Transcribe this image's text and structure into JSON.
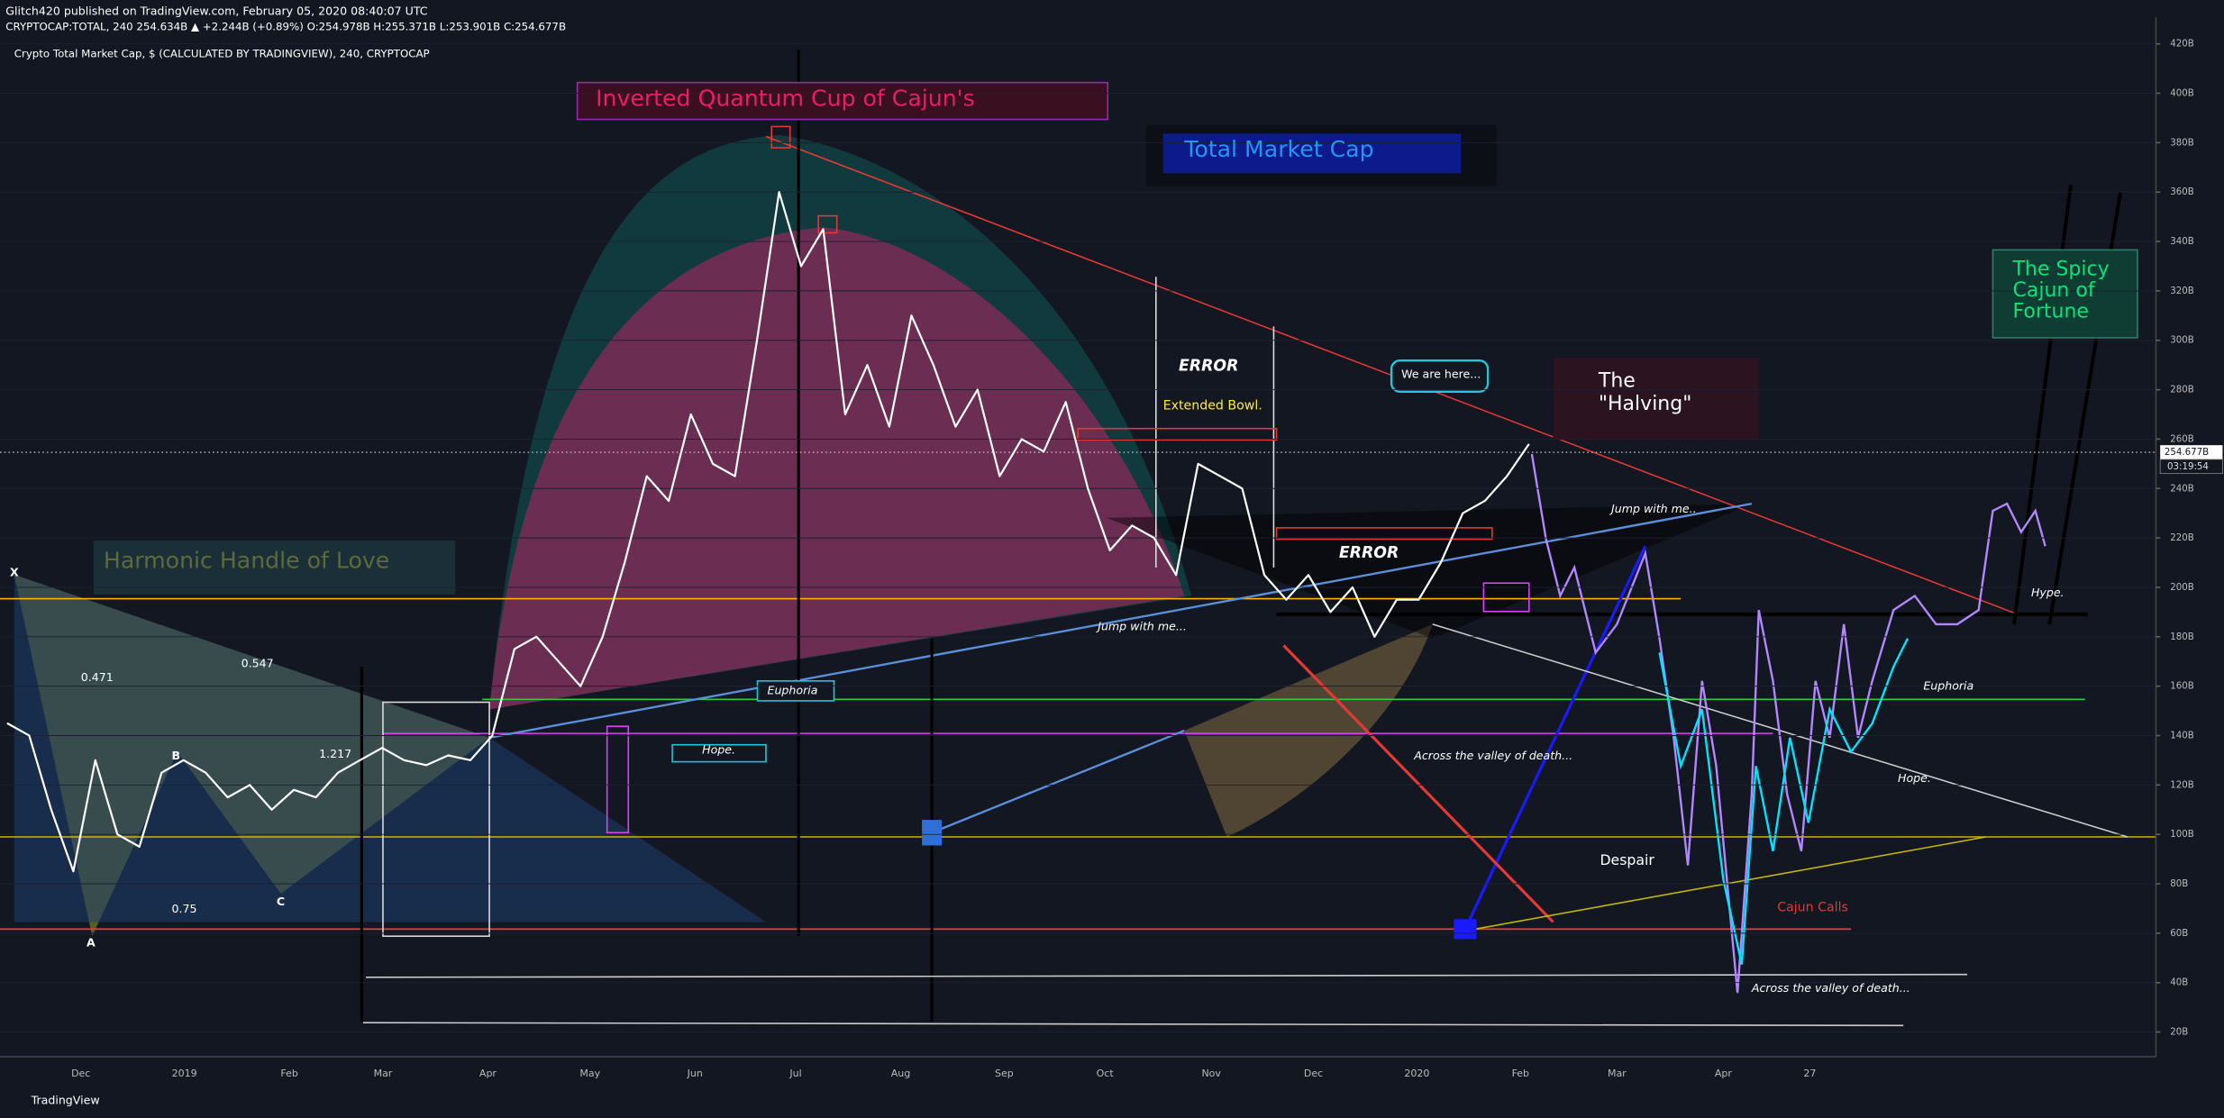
{
  "header": {
    "publisher": "Glitch420 published on TradingView.com, February 05, 2020 08:40:07 UTC",
    "symbol_line": "CRYPTOCAP:TOTAL, 240  254.634B ▲ +2.244B (+0.89%) O:254.978B H:255.371B L:253.901B C:254.677B",
    "footer": "TradingView",
    "countdown": "03:19:54"
  },
  "chart_data": {
    "type": "line",
    "title": "Crypto Total Market Cap, $ (CALCULATED BY TRADINGVIEW), 240, CRYPTOCAP",
    "x_labels": [
      "Dec",
      "2019",
      "Feb",
      "Mar",
      "Apr",
      "May",
      "Jun",
      "Jul",
      "Aug",
      "Sep",
      "Oct",
      "Nov",
      "Dec",
      "2020",
      "Feb",
      "Mar",
      "Apr",
      "27"
    ],
    "series": [
      {
        "color": "#ffffff",
        "values": [
          145,
          140,
          110,
          85,
          130,
          100,
          95,
          125,
          130,
          125,
          115,
          120,
          110,
          118,
          115,
          125,
          130,
          135,
          130,
          128,
          132,
          130,
          140,
          175,
          180,
          170,
          160,
          180,
          210,
          245,
          235,
          270,
          250,
          245,
          300,
          360,
          330,
          345,
          270,
          290,
          265,
          310,
          290,
          265,
          280,
          245,
          260,
          255,
          275,
          240,
          215,
          225,
          220,
          205,
          250,
          245,
          240,
          205,
          195,
          205,
          190,
          200,
          180,
          195,
          195,
          210,
          230,
          235,
          245,
          258
        ]
      }
    ],
    "ylim": [
      10,
      425
    ],
    "yticks": [
      {
        "value": 20,
        "label": "20B"
      },
      {
        "value": 40,
        "label": "40B"
      },
      {
        "value": 60,
        "label": "60B"
      },
      {
        "value": 80,
        "label": "80B"
      },
      {
        "value": 100,
        "label": "100B"
      },
      {
        "value": 120,
        "label": "120B"
      },
      {
        "value": 140,
        "label": "140B"
      },
      {
        "value": 160,
        "label": "160B"
      },
      {
        "value": 180,
        "label": "180B"
      },
      {
        "value": 200,
        "label": "200B"
      },
      {
        "value": 220,
        "label": "220B"
      },
      {
        "value": 240,
        "label": "240B"
      },
      {
        "value": 260,
        "label": "260B"
      },
      {
        "value": 280,
        "label": "280B"
      },
      {
        "value": 300,
        "label": "300B"
      },
      {
        "value": 320,
        "label": "320B"
      },
      {
        "value": 340,
        "label": "340B"
      },
      {
        "value": 360,
        "label": "360B"
      },
      {
        "value": 380,
        "label": "380B"
      },
      {
        "value": 400,
        "label": "400B"
      },
      {
        "value": 420,
        "label": "420B"
      }
    ],
    "grid": true,
    "last_price": {
      "value": 254.677,
      "label": "254.677B"
    },
    "annotations": [
      "Inverted Quantum Cup of Cajun's",
      "Total Market Cap",
      "Harmonic Handle of Love",
      "ERROR",
      "Extended Bowl.",
      "ERROR",
      "We are here...",
      "The",
      "\"Halving\"",
      "Jump with me..",
      "Jump with me...",
      "The Spicy",
      "Cajun of",
      "Fortune",
      "Euphoria",
      "Hope.",
      "Across the valley of death...",
      "Despair",
      "Cajun Calls",
      "Across the valley of death...",
      "Hype.",
      "Euphoria",
      "Hope.",
      "X",
      "A",
      "B",
      "C",
      "0.471",
      "0.547",
      "0.75",
      "1.217"
    ]
  }
}
